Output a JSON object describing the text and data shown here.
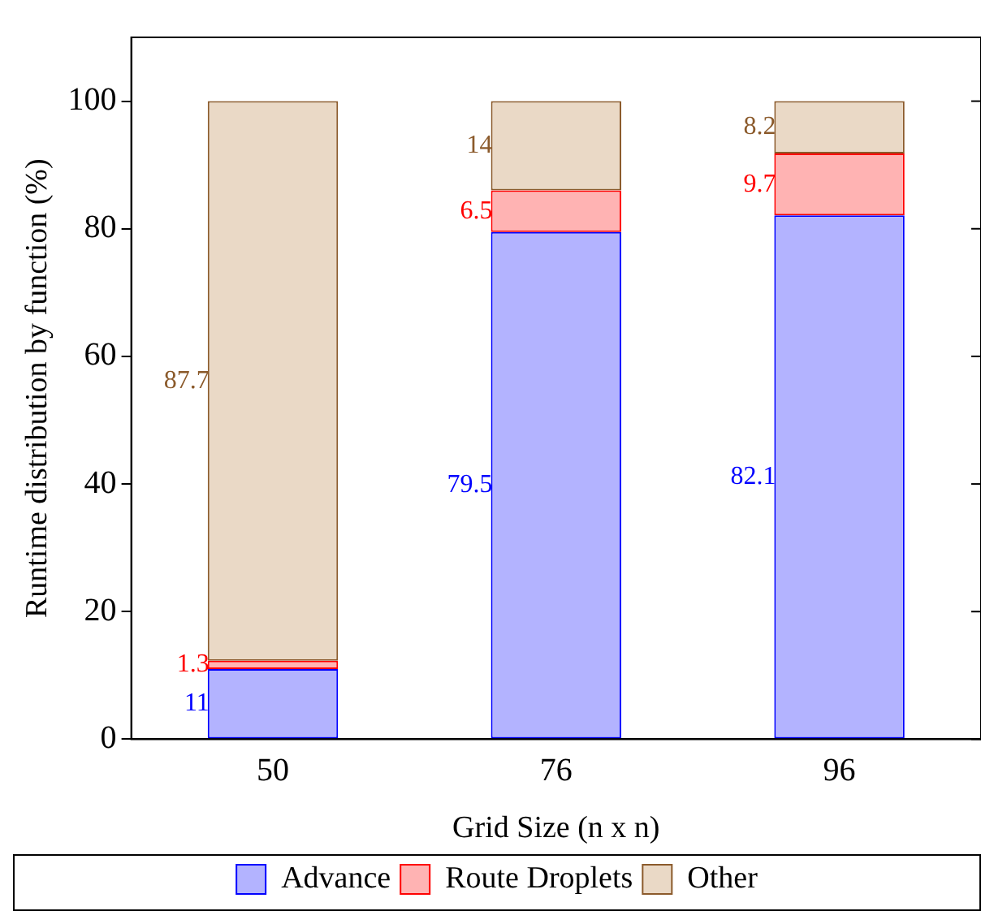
{
  "chart_data": {
    "type": "bar",
    "stacked": true,
    "xlabel": "Grid Size (n x n)",
    "ylabel": "Runtime distribution by function (%)",
    "categories": [
      "50",
      "76",
      "96"
    ],
    "series": [
      {
        "name": "Advance",
        "color": "#b3b3ff",
        "values": [
          11,
          79.5,
          82.1
        ]
      },
      {
        "name": "Route Droplets",
        "color": "#ffb3b3",
        "values": [
          1.3,
          6.5,
          9.7
        ]
      },
      {
        "name": "Other",
        "color": "#ead9c6",
        "values": [
          87.7,
          14,
          8.2
        ]
      }
    ],
    "ylim": [
      0,
      110
    ],
    "yticks": [
      0,
      20,
      40,
      60,
      80,
      100
    ],
    "grid": false,
    "legend": "bottom",
    "data_labels": true
  }
}
